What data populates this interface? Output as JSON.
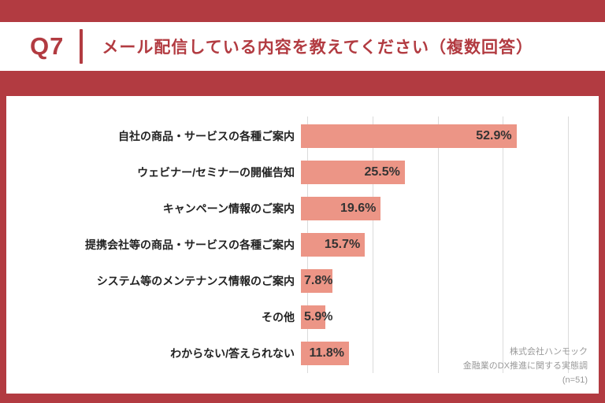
{
  "header": {
    "q_label": "Q7",
    "title": "メール配信している内容を教えてください（複数回答）"
  },
  "chart_data": {
    "type": "bar",
    "orientation": "horizontal",
    "title": "メール配信している内容を教えてください（複数回答）",
    "categories": [
      "自社の商品・サービスの各種ご案内",
      "ウェビナー/セミナーの開催告知",
      "キャンペーン情報のご案内",
      "提携会社等の商品・サービスの各種ご案内",
      "システム等のメンテナンス情報のご案内",
      "その他",
      "わからない/答えられない"
    ],
    "values": [
      52.9,
      25.5,
      19.6,
      15.7,
      7.8,
      5.9,
      11.8
    ],
    "value_suffix": "%",
    "xlim": [
      0,
      64
    ],
    "grid": true,
    "bar_color": "#EC9586",
    "legend_position": "none"
  },
  "source": {
    "line1": "株式会社ハンモック",
    "line2": "金融業のDX推進に関する実態調",
    "line3": "(n=51)"
  },
  "colors": {
    "background_red": "#B23B41",
    "card_white": "#FFFFFF",
    "bar_salmon": "#EC9586",
    "gridline_gray": "#DBDBDB",
    "label_dark": "#222222",
    "source_gray": "#999999"
  }
}
